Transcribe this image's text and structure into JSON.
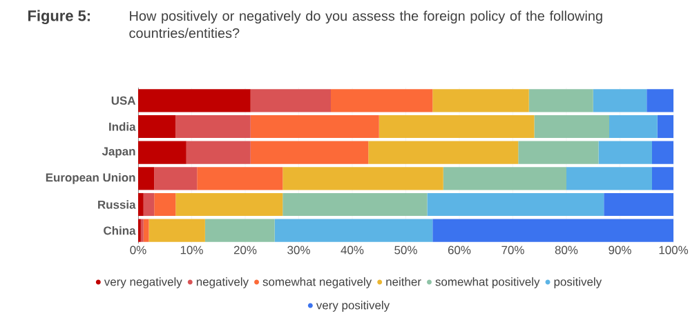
{
  "chart_data": {
    "type": "bar",
    "orientation": "horizontal",
    "stacked": true,
    "title": "Figure 5:",
    "subtitle": "How positively or negatively do you assess the foreign policy of the following countries/entities?",
    "categories": [
      "USA",
      "India",
      "Japan",
      "European Union",
      "Russia",
      "China"
    ],
    "series": [
      {
        "name": "very negatively",
        "color": "#c00000",
        "values": [
          21,
          7,
          9,
          3,
          1,
          0.5
        ]
      },
      {
        "name": "negatively",
        "color": "#d95355",
        "values": [
          15,
          14,
          12,
          8,
          2,
          0.5
        ]
      },
      {
        "name": "somewhat negatively",
        "color": "#fc6a38",
        "values": [
          19,
          24,
          22,
          16,
          4,
          1
        ]
      },
      {
        "name": "neither",
        "color": "#ebb631",
        "values": [
          18,
          29,
          28,
          30,
          20,
          10.5
        ]
      },
      {
        "name": "somewhat positively",
        "color": "#8ec3a6",
        "values": [
          12,
          14,
          15,
          23,
          27,
          13
        ]
      },
      {
        "name": "positively",
        "color": "#5cb4e5",
        "values": [
          10,
          9,
          10,
          16,
          33,
          29.5
        ]
      },
      {
        "name": "very positively",
        "color": "#3b73ef",
        "values": [
          5,
          3,
          4,
          4,
          13,
          45
        ]
      }
    ],
    "xlim": [
      0,
      100
    ],
    "xticks": [
      {
        "value": 0,
        "label": "0%"
      },
      {
        "value": 10,
        "label": "10%"
      },
      {
        "value": 20,
        "label": "20%"
      },
      {
        "value": 30,
        "label": "30%"
      },
      {
        "value": 40,
        "label": "40%"
      },
      {
        "value": 50,
        "label": "50%"
      },
      {
        "value": 60,
        "label": "60%"
      },
      {
        "value": 70,
        "label": "70%"
      },
      {
        "value": 80,
        "label": "80%"
      },
      {
        "value": 90,
        "label": "90%"
      },
      {
        "value": 100,
        "label": "100%"
      }
    ],
    "grid": "x",
    "legend": "bottom"
  }
}
